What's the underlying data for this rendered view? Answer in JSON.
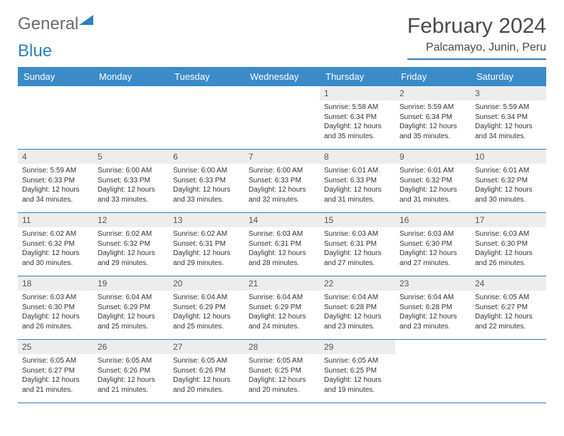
{
  "logo": {
    "text_a": "General",
    "text_b": "Blue"
  },
  "title": "February 2024",
  "location": "Palcamayo, Junin, Peru",
  "colors": {
    "header_bg": "#3b8bc9",
    "divider": "#2f7fc3",
    "daynum_bg": "#ededed",
    "text": "#333333",
    "logo_gray": "#6b6b6b",
    "logo_blue": "#2f7fc3"
  },
  "dayNames": [
    "Sunday",
    "Monday",
    "Tuesday",
    "Wednesday",
    "Thursday",
    "Friday",
    "Saturday"
  ],
  "weeks": [
    [
      null,
      null,
      null,
      null,
      {
        "n": "1",
        "sunrise": "5:58 AM",
        "sunset": "6:34 PM",
        "daylight": "12 hours and 35 minutes."
      },
      {
        "n": "2",
        "sunrise": "5:59 AM",
        "sunset": "6:34 PM",
        "daylight": "12 hours and 35 minutes."
      },
      {
        "n": "3",
        "sunrise": "5:59 AM",
        "sunset": "6:34 PM",
        "daylight": "12 hours and 34 minutes."
      }
    ],
    [
      {
        "n": "4",
        "sunrise": "5:59 AM",
        "sunset": "6:33 PM",
        "daylight": "12 hours and 34 minutes."
      },
      {
        "n": "5",
        "sunrise": "6:00 AM",
        "sunset": "6:33 PM",
        "daylight": "12 hours and 33 minutes."
      },
      {
        "n": "6",
        "sunrise": "6:00 AM",
        "sunset": "6:33 PM",
        "daylight": "12 hours and 33 minutes."
      },
      {
        "n": "7",
        "sunrise": "6:00 AM",
        "sunset": "6:33 PM",
        "daylight": "12 hours and 32 minutes."
      },
      {
        "n": "8",
        "sunrise": "6:01 AM",
        "sunset": "6:33 PM",
        "daylight": "12 hours and 31 minutes."
      },
      {
        "n": "9",
        "sunrise": "6:01 AM",
        "sunset": "6:32 PM",
        "daylight": "12 hours and 31 minutes."
      },
      {
        "n": "10",
        "sunrise": "6:01 AM",
        "sunset": "6:32 PM",
        "daylight": "12 hours and 30 minutes."
      }
    ],
    [
      {
        "n": "11",
        "sunrise": "6:02 AM",
        "sunset": "6:32 PM",
        "daylight": "12 hours and 30 minutes."
      },
      {
        "n": "12",
        "sunrise": "6:02 AM",
        "sunset": "6:32 PM",
        "daylight": "12 hours and 29 minutes."
      },
      {
        "n": "13",
        "sunrise": "6:02 AM",
        "sunset": "6:31 PM",
        "daylight": "12 hours and 29 minutes."
      },
      {
        "n": "14",
        "sunrise": "6:03 AM",
        "sunset": "6:31 PM",
        "daylight": "12 hours and 28 minutes."
      },
      {
        "n": "15",
        "sunrise": "6:03 AM",
        "sunset": "6:31 PM",
        "daylight": "12 hours and 27 minutes."
      },
      {
        "n": "16",
        "sunrise": "6:03 AM",
        "sunset": "6:30 PM",
        "daylight": "12 hours and 27 minutes."
      },
      {
        "n": "17",
        "sunrise": "6:03 AM",
        "sunset": "6:30 PM",
        "daylight": "12 hours and 26 minutes."
      }
    ],
    [
      {
        "n": "18",
        "sunrise": "6:03 AM",
        "sunset": "6:30 PM",
        "daylight": "12 hours and 26 minutes."
      },
      {
        "n": "19",
        "sunrise": "6:04 AM",
        "sunset": "6:29 PM",
        "daylight": "12 hours and 25 minutes."
      },
      {
        "n": "20",
        "sunrise": "6:04 AM",
        "sunset": "6:29 PM",
        "daylight": "12 hours and 25 minutes."
      },
      {
        "n": "21",
        "sunrise": "6:04 AM",
        "sunset": "6:29 PM",
        "daylight": "12 hours and 24 minutes."
      },
      {
        "n": "22",
        "sunrise": "6:04 AM",
        "sunset": "6:28 PM",
        "daylight": "12 hours and 23 minutes."
      },
      {
        "n": "23",
        "sunrise": "6:04 AM",
        "sunset": "6:28 PM",
        "daylight": "12 hours and 23 minutes."
      },
      {
        "n": "24",
        "sunrise": "6:05 AM",
        "sunset": "6:27 PM",
        "daylight": "12 hours and 22 minutes."
      }
    ],
    [
      {
        "n": "25",
        "sunrise": "6:05 AM",
        "sunset": "6:27 PM",
        "daylight": "12 hours and 21 minutes."
      },
      {
        "n": "26",
        "sunrise": "6:05 AM",
        "sunset": "6:26 PM",
        "daylight": "12 hours and 21 minutes."
      },
      {
        "n": "27",
        "sunrise": "6:05 AM",
        "sunset": "6:26 PM",
        "daylight": "12 hours and 20 minutes."
      },
      {
        "n": "28",
        "sunrise": "6:05 AM",
        "sunset": "6:25 PM",
        "daylight": "12 hours and 20 minutes."
      },
      {
        "n": "29",
        "sunrise": "6:05 AM",
        "sunset": "6:25 PM",
        "daylight": "12 hours and 19 minutes."
      },
      null,
      null
    ]
  ]
}
